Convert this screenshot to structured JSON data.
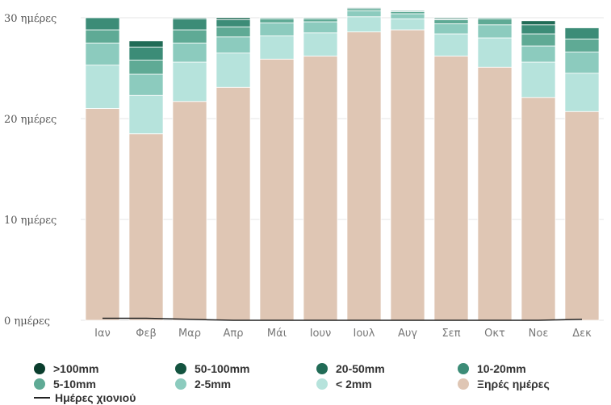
{
  "chart_data": {
    "type": "bar",
    "stacked": true,
    "categories": [
      "Ιαν",
      "Φεβ",
      "Μαρ",
      "Απρ",
      "Μάι",
      "Ιουν",
      "Ιουλ",
      "Αυγ",
      "Σεπ",
      "Οκτ",
      "Νοε",
      "Δεκ"
    ],
    "y_ticks": [
      "0 ημέρες",
      "10 ημέρες",
      "20 ημέρες",
      "30 ημέρες"
    ],
    "ylim": [
      0,
      30
    ],
    "grid": true,
    "legend_position": "bottom",
    "series": [
      {
        "name": "Ξηρές ημέρες",
        "color": "#dfc6b4",
        "values": [
          21.0,
          18.5,
          21.7,
          23.1,
          25.9,
          26.2,
          28.6,
          28.8,
          26.2,
          25.1,
          22.1,
          20.7
        ]
      },
      {
        "name": "< 2mm",
        "color": "#b6e3dc",
        "values": [
          4.3,
          3.8,
          3.9,
          3.4,
          2.3,
          2.3,
          1.5,
          1.1,
          2.2,
          2.9,
          3.5,
          3.8
        ]
      },
      {
        "name": "2-5mm",
        "color": "#8ccbbe",
        "values": [
          2.2,
          2.1,
          1.9,
          1.6,
          1.3,
          1.1,
          0.6,
          0.5,
          1.0,
          1.3,
          1.6,
          2.1
        ]
      },
      {
        "name": "5-10mm",
        "color": "#5faa95",
        "values": [
          1.3,
          1.4,
          1.3,
          1.0,
          0.4,
          0.3,
          0.2,
          0.2,
          0.4,
          0.6,
          1.2,
          1.3
        ]
      },
      {
        "name": "10-20mm",
        "color": "#3c8c77",
        "values": [
          1.2,
          1.3,
          1.1,
          0.7,
          0.1,
          0.1,
          0.1,
          0.1,
          0.1,
          0.1,
          0.9,
          1.1
        ]
      },
      {
        "name": "20-50mm",
        "color": "#216b56",
        "values": [
          0.0,
          0.6,
          0.1,
          0.2,
          0.0,
          0.0,
          0.0,
          0.0,
          0.1,
          0.0,
          0.4,
          0.0
        ]
      },
      {
        "name": "50-100mm",
        "color": "#13533f",
        "values": [
          0.0,
          0.0,
          0.0,
          0.0,
          0.0,
          0.0,
          0.0,
          0.0,
          0.0,
          0.0,
          0.0,
          0.0
        ]
      },
      {
        "name": ">100mm",
        "color": "#0a3d2d",
        "values": [
          0.0,
          0.0,
          0.0,
          0.0,
          0.0,
          0.0,
          0.0,
          0.0,
          0.0,
          0.0,
          0.0,
          0.0
        ]
      }
    ],
    "snow_days": {
      "name": "Ημέρες χιονιού",
      "color": "#222222",
      "values": [
        0.2,
        0.2,
        0.1,
        0.0,
        0.0,
        0.0,
        0.0,
        0.0,
        0.0,
        0.0,
        0.0,
        0.1
      ]
    }
  },
  "legend": {
    "items": [
      {
        "label": ">100mm",
        "color": "#0a3d2d"
      },
      {
        "label": "50-100mm",
        "color": "#13533f"
      },
      {
        "label": "20-50mm",
        "color": "#216b56"
      },
      {
        "label": "10-20mm",
        "color": "#3c8c77"
      },
      {
        "label": "5-10mm",
        "color": "#5faa95"
      },
      {
        "label": "2-5mm",
        "color": "#8ccbbe"
      },
      {
        "label": "< 2mm",
        "color": "#b6e3dc"
      },
      {
        "label": "Ξηρές ημέρες",
        "color": "#dfc6b4"
      }
    ],
    "snow_label": "Ημέρες χιονιού"
  }
}
